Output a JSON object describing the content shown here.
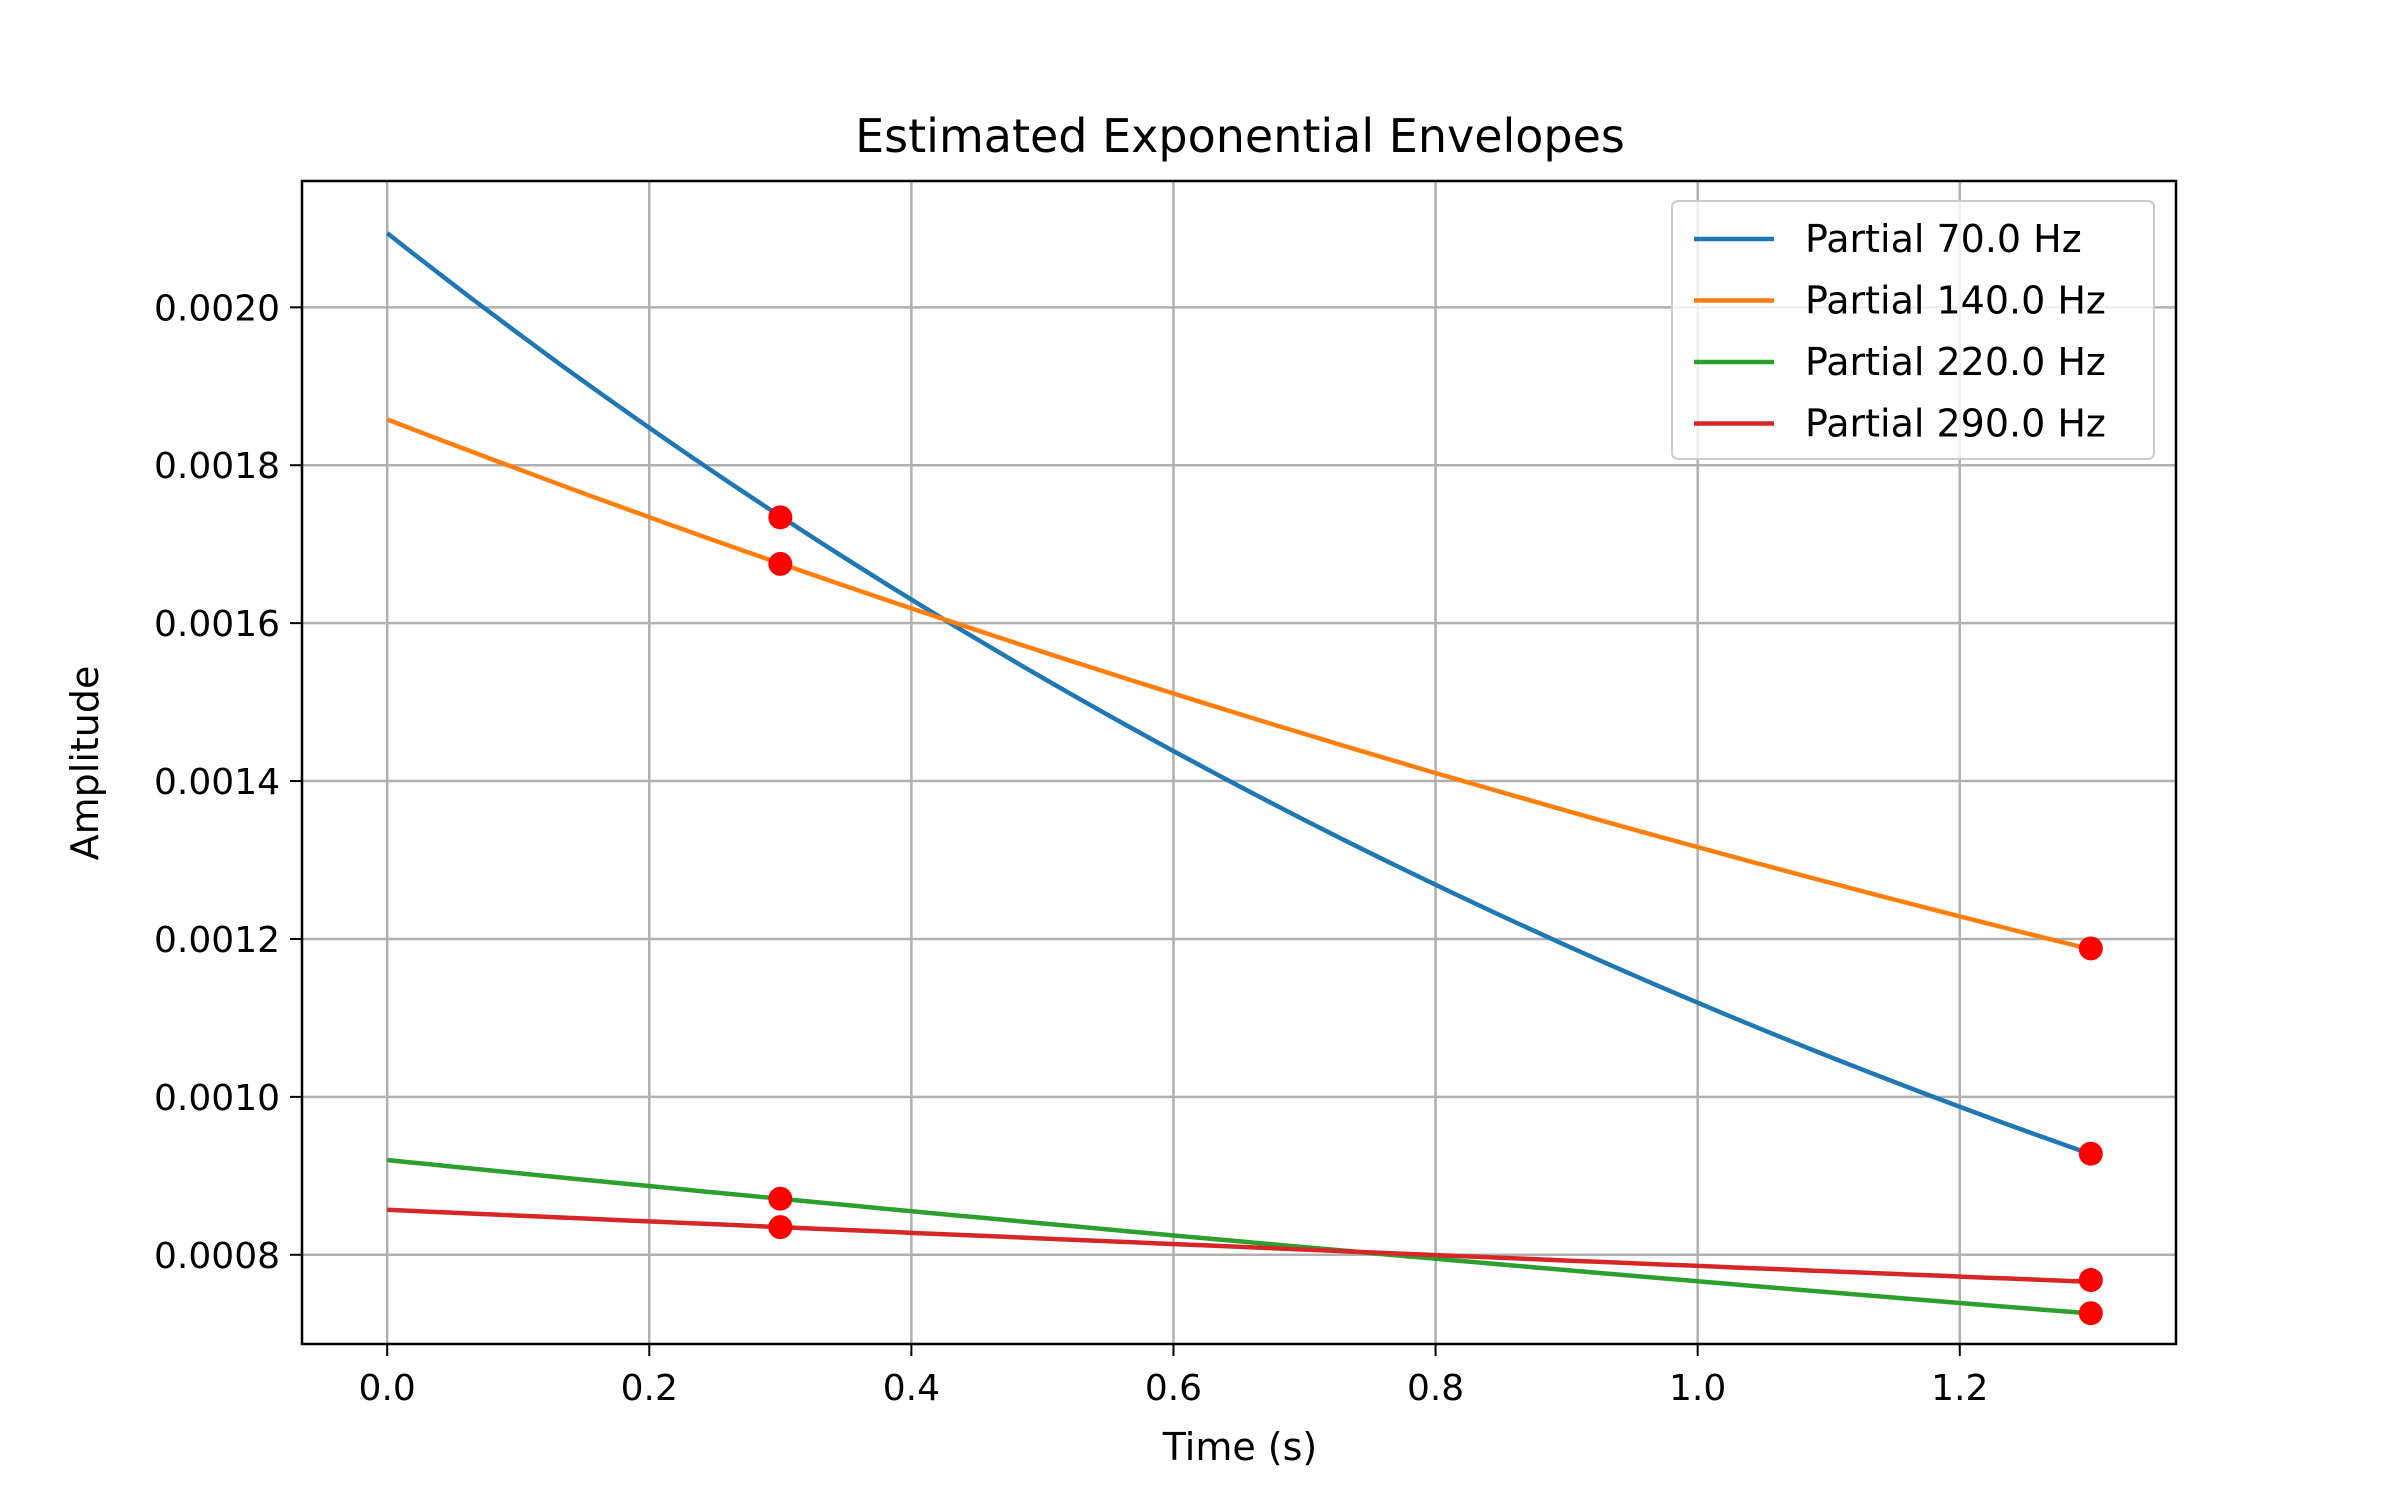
{
  "chart_data": {
    "type": "line",
    "title": "Estimated Exponential Envelopes",
    "xlabel": "Time (s)",
    "ylabel": "Amplitude",
    "xlim": [
      -0.065,
      1.365
    ],
    "ylim": [
      0.000687,
      0.00216
    ],
    "xticks": [
      0.0,
      0.2,
      0.4,
      0.6,
      0.8,
      1.0,
      1.2
    ],
    "xtick_labels": [
      "0.0",
      "0.2",
      "0.4",
      "0.6",
      "0.8",
      "1.0",
      "1.2"
    ],
    "yticks": [
      0.0008,
      0.001,
      0.0012,
      0.0014,
      0.0016,
      0.0018,
      0.002
    ],
    "ytick_labels": [
      "0.0008",
      "0.0010",
      "0.0012",
      "0.0014",
      "0.0016",
      "0.0018",
      "0.0020"
    ],
    "grid": true,
    "legend_position": "top-right",
    "series": [
      {
        "name": "Partial 70.0 Hz",
        "color": "#1f77b4",
        "a0": 0.002094,
        "decay": 0.6264,
        "t_end": 1.3
      },
      {
        "name": "Partial 140.0 Hz",
        "color": "#ff7f0e",
        "a0": 0.001858,
        "decay": 0.3447,
        "t_end": 1.3
      },
      {
        "name": "Partial 220.0 Hz",
        "color": "#2ca02c",
        "a0": 0.00092,
        "decay": 0.1826,
        "t_end": 1.3
      },
      {
        "name": "Partial 290.0 Hz",
        "color": "#d62728",
        "a0": 0.000857,
        "decay": 0.0866,
        "t_end": 1.3
      }
    ],
    "points": {
      "color": "#ff0000",
      "items": [
        {
          "x": 0.3,
          "y": 0.001734
        },
        {
          "x": 0.3,
          "y": 0.001675
        },
        {
          "x": 0.3,
          "y": 0.000871
        },
        {
          "x": 0.3,
          "y": 0.000835
        },
        {
          "x": 1.3,
          "y": 0.001188
        },
        {
          "x": 1.3,
          "y": 0.000928
        },
        {
          "x": 1.3,
          "y": 0.000768
        },
        {
          "x": 1.3,
          "y": 0.000726
        }
      ]
    }
  }
}
